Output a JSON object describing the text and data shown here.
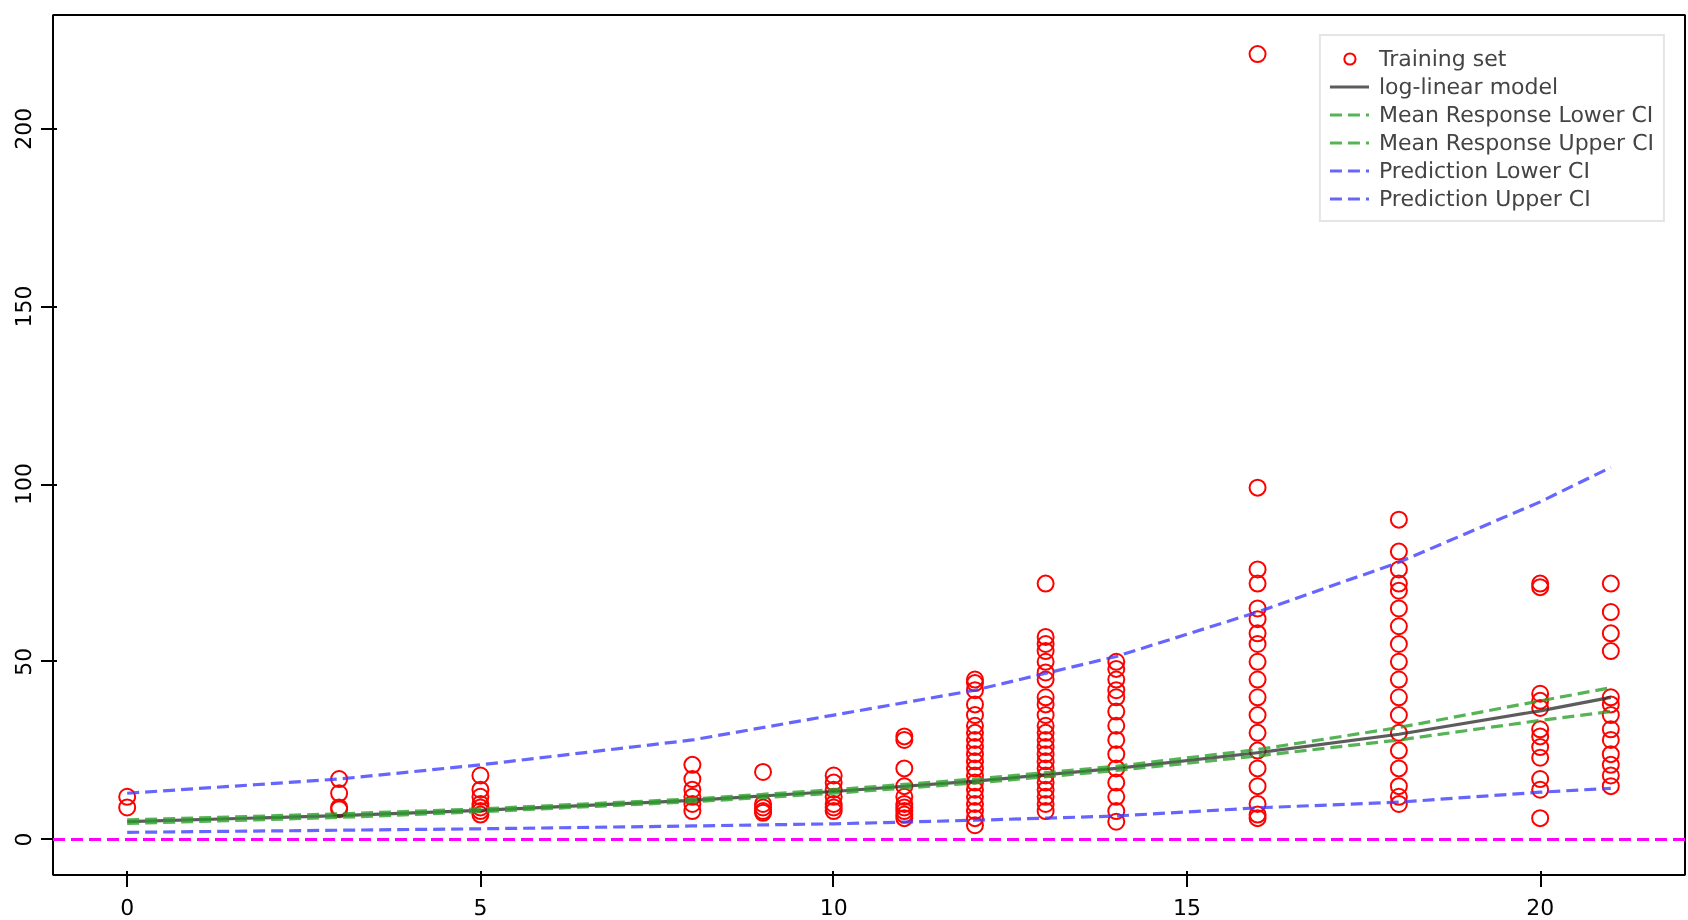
{
  "chart_data": {
    "type": "scatter",
    "xlim": [
      -1.05,
      22.05
    ],
    "ylim": [
      -10,
      232
    ],
    "xticks": [
      0,
      5,
      10,
      15,
      20
    ],
    "yticks": [
      0,
      50,
      100,
      150,
      200
    ],
    "grid": false,
    "legend": "top right",
    "series": [
      {
        "name": "Training set",
        "marker": "circle",
        "color": "#ff0000",
        "x": [
          0,
          0,
          3,
          3,
          3,
          3,
          5,
          5,
          5,
          5,
          5,
          5,
          5,
          8,
          8,
          8,
          8,
          8,
          8,
          9,
          9,
          9,
          9,
          9,
          10,
          10,
          10,
          10,
          10,
          10,
          10,
          11,
          11,
          11,
          11,
          11,
          11,
          11,
          11,
          11,
          11,
          12,
          12,
          12,
          12,
          12,
          12,
          12,
          12,
          12,
          12,
          12,
          12,
          12,
          12,
          12,
          12,
          12,
          12,
          12,
          12,
          13,
          13,
          13,
          13,
          13,
          13,
          13,
          13,
          13,
          13,
          13,
          13,
          13,
          13,
          13,
          13,
          13,
          13,
          13,
          13,
          13,
          13,
          13,
          14,
          14,
          14,
          14,
          14,
          14,
          14,
          14,
          14,
          14,
          14,
          14,
          14,
          14,
          16,
          16,
          16,
          16,
          16,
          16,
          16,
          16,
          16,
          16,
          16,
          16,
          16,
          16,
          16,
          16,
          16,
          16,
          16,
          18,
          18,
          18,
          18,
          18,
          18,
          18,
          18,
          18,
          18,
          18,
          18,
          18,
          18,
          18,
          18,
          18,
          18,
          20,
          20,
          20,
          20,
          20,
          20,
          20,
          20,
          20,
          20,
          20,
          20,
          21,
          21,
          21,
          21,
          21,
          21,
          21,
          21,
          21,
          21,
          21,
          21,
          21
        ],
        "values": [
          12,
          9,
          17,
          13,
          9,
          8.5,
          18,
          14,
          12,
          10,
          9,
          8,
          7,
          21,
          17,
          14,
          12,
          10,
          8,
          19,
          10,
          9,
          8,
          7.5,
          18,
          16,
          14,
          12,
          10,
          9,
          8,
          29,
          28,
          20,
          15,
          12,
          10,
          9,
          8,
          7,
          6,
          45,
          44,
          42,
          38,
          35,
          32,
          30,
          28,
          26,
          24,
          22,
          20,
          18,
          16,
          14,
          12,
          10,
          8,
          6,
          4,
          72,
          57,
          55,
          53,
          50,
          47,
          45,
          40,
          38,
          35,
          32,
          30,
          28,
          26,
          24,
          22,
          20,
          18,
          16,
          14,
          12,
          10,
          8,
          50,
          48,
          45,
          42,
          40,
          36,
          32,
          28,
          24,
          20,
          16,
          12,
          8,
          5,
          221,
          99,
          76,
          72,
          65,
          62,
          58,
          55,
          50,
          45,
          40,
          35,
          30,
          25,
          20,
          15,
          10,
          7,
          6,
          90,
          81,
          76,
          72,
          70,
          65,
          60,
          55,
          50,
          45,
          40,
          35,
          30,
          25,
          20,
          15,
          12,
          10,
          72,
          71,
          41,
          39,
          37,
          31,
          29,
          26,
          23,
          17,
          14,
          6,
          72,
          64,
          58,
          53,
          40,
          38,
          35,
          31,
          28,
          24,
          21,
          18,
          15
        ]
      },
      {
        "name": "log-linear model",
        "type": "line",
        "line_style": "solid",
        "color": "#333333",
        "x": [
          0,
          3,
          5,
          8,
          10,
          12,
          14,
          16,
          18,
          20,
          21
        ],
        "values": [
          5,
          6.7,
          8.2,
          11,
          13.5,
          16.4,
          20,
          24.4,
          29.6,
          36.2,
          40
        ]
      },
      {
        "name": "Mean Response Lower CI",
        "type": "line",
        "line_style": "dashed",
        "color": "#2ca02c",
        "x": [
          0,
          3,
          5,
          8,
          10,
          12,
          14,
          16,
          18,
          20,
          21
        ],
        "values": [
          4.5,
          6.2,
          7.8,
          10.6,
          13,
          15.9,
          19.4,
          23.5,
          28,
          33.5,
          36
        ]
      },
      {
        "name": "Mean Response Upper CI",
        "type": "line",
        "line_style": "dashed",
        "color": "#2ca02c",
        "x": [
          0,
          3,
          5,
          8,
          10,
          12,
          14,
          16,
          18,
          20,
          21
        ],
        "values": [
          5.5,
          7.2,
          8.6,
          11.4,
          14,
          17,
          20.6,
          25.3,
          31.5,
          39,
          42.7
        ]
      },
      {
        "name": "Prediction Lower CI",
        "type": "line",
        "line_style": "dashed",
        "color": "#4040ff",
        "x": [
          0,
          3,
          5,
          8,
          10,
          12,
          14,
          16,
          18,
          20,
          21
        ],
        "values": [
          2,
          2.6,
          3,
          3.8,
          4.4,
          5.4,
          6.6,
          8.9,
          10.5,
          13.3,
          14.4
        ]
      },
      {
        "name": "Prediction Upper CI",
        "type": "line",
        "line_style": "dashed",
        "color": "#4040ff",
        "x": [
          0,
          3,
          5,
          8,
          10,
          12,
          14,
          16,
          18,
          20,
          21
        ],
        "values": [
          13,
          17,
          21,
          28,
          35,
          42,
          51.5,
          64,
          78,
          95,
          104.7
        ]
      }
    ],
    "ref_lines": [
      {
        "axis": "y",
        "value": 0,
        "color": "#ff00ff",
        "line_style": "dashed"
      }
    ]
  }
}
